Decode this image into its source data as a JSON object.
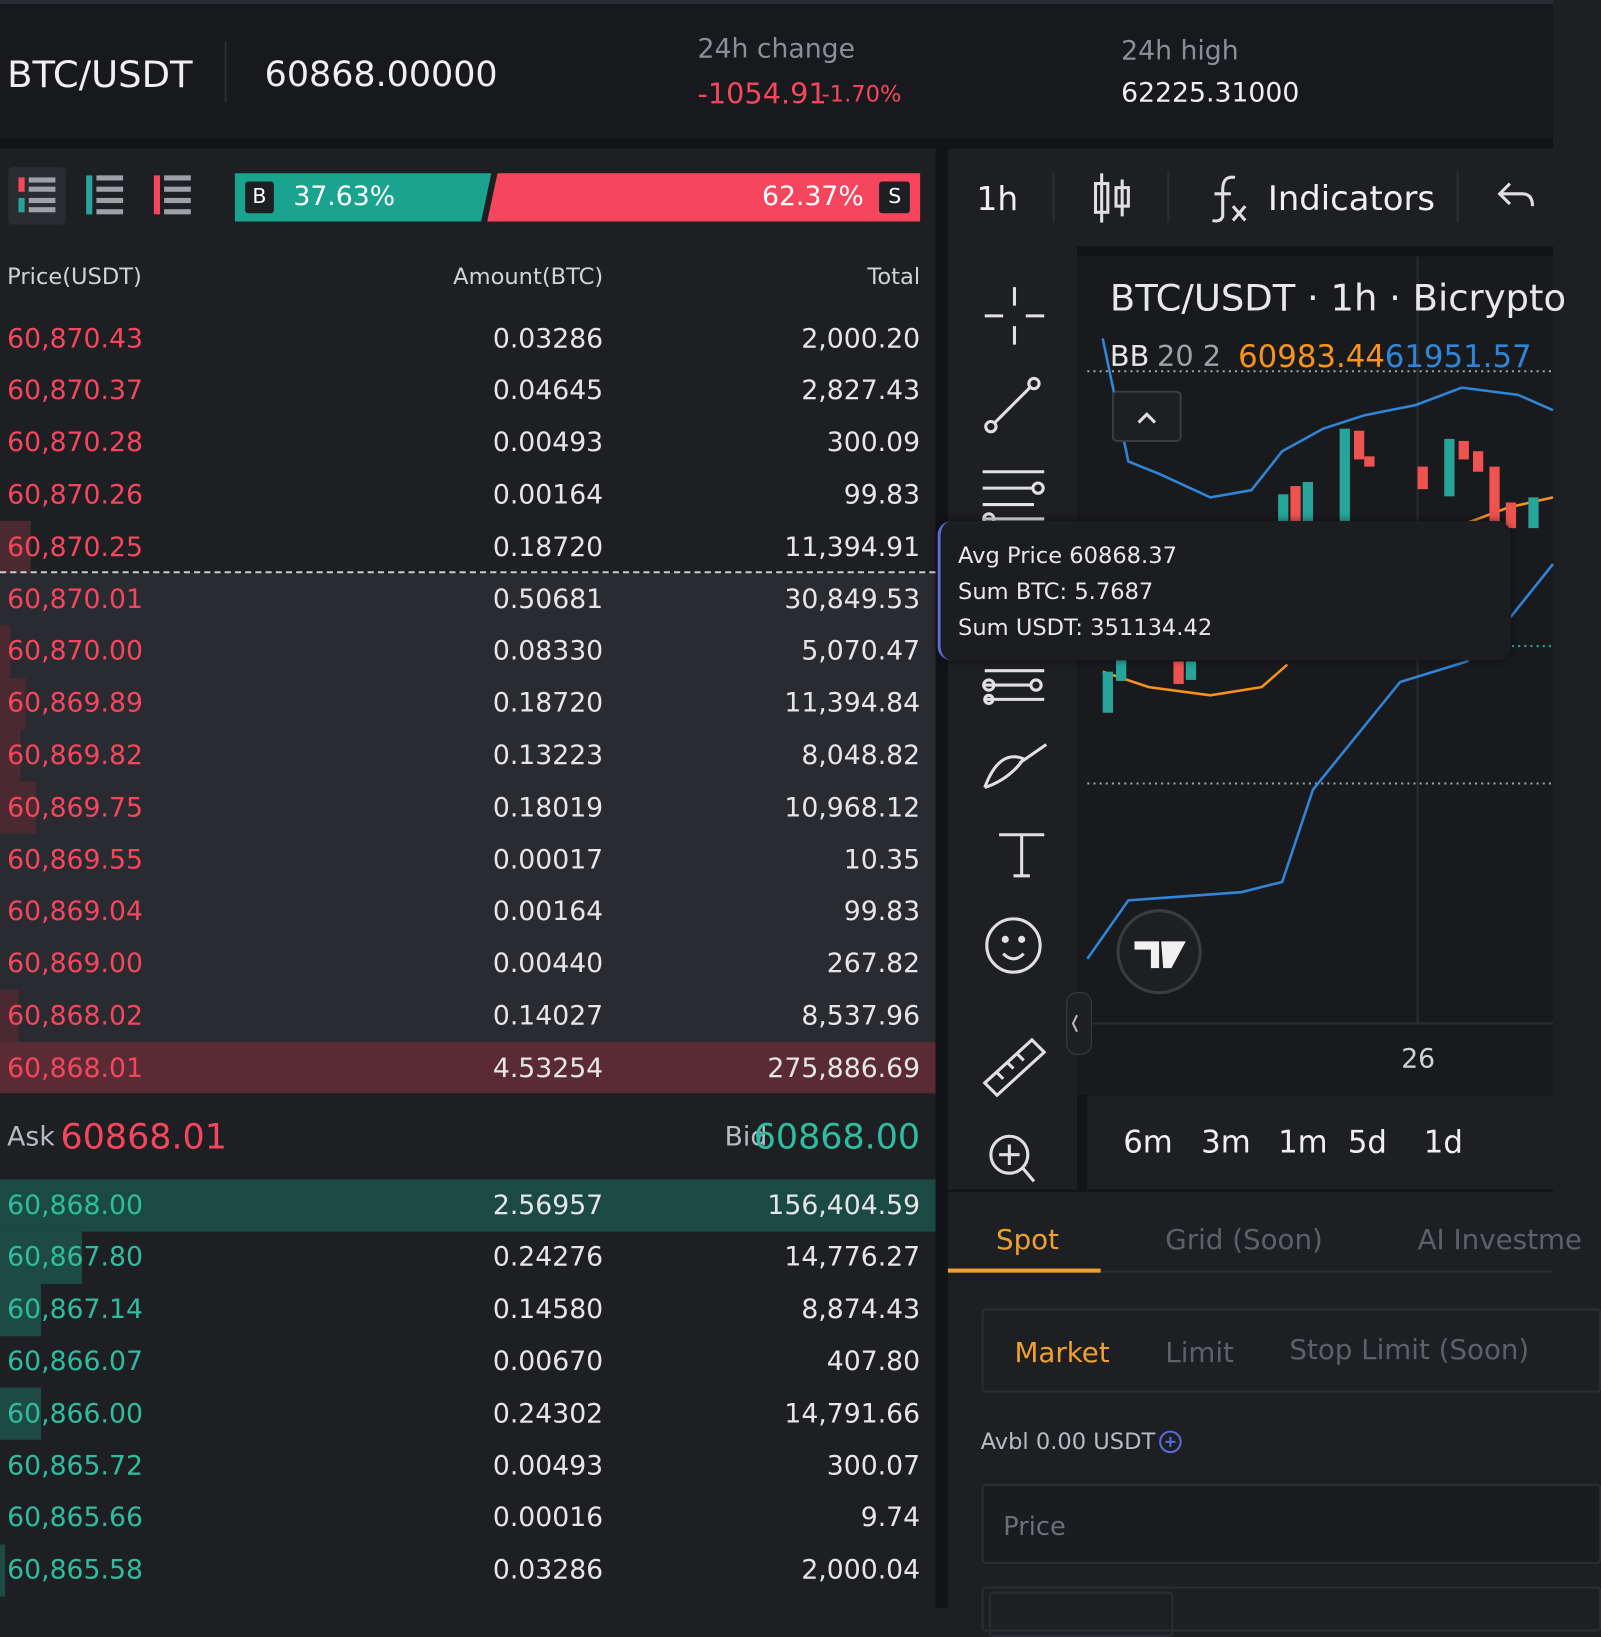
{
  "header": {
    "pair": "BTC/USDT",
    "price": "60868.00000",
    "change_label": "24h change",
    "change": "-1054.91",
    "change_pct": "-1.70%",
    "high_label": "24h high",
    "high": "62225.31000"
  },
  "order_book": {
    "ratio": {
      "buy_letter": "B",
      "buy_pct": "37.63%",
      "sell_pct": "62.37%",
      "sell_letter": "S"
    },
    "columns": [
      "Price(USDT)",
      "Amount(BTC)",
      "Total"
    ],
    "asks": [
      [
        "60,870.43",
        "0.03286",
        "2,000.20"
      ],
      [
        "60,870.37",
        "0.04645",
        "2,827.43"
      ],
      [
        "60,870.28",
        "0.00493",
        "300.09"
      ],
      [
        "60,870.26",
        "0.00164",
        "99.83"
      ],
      [
        "60,870.25",
        "0.18720",
        "11,394.91"
      ],
      [
        "60,870.01",
        "0.50681",
        "30,849.53"
      ],
      [
        "60,870.00",
        "0.08330",
        "5,070.47"
      ],
      [
        "60,869.89",
        "0.18720",
        "11,394.84"
      ],
      [
        "60,869.82",
        "0.13223",
        "8,048.82"
      ],
      [
        "60,869.75",
        "0.18019",
        "10,968.12"
      ],
      [
        "60,869.55",
        "0.00017",
        "10.35"
      ],
      [
        "60,869.04",
        "0.00164",
        "99.83"
      ],
      [
        "60,869.00",
        "0.00440",
        "267.82"
      ],
      [
        "60,868.02",
        "0.14027",
        "8,537.96"
      ],
      [
        "60,868.01",
        "4.53254",
        "275,886.69"
      ]
    ],
    "spread": {
      "ask_label": "Ask",
      "ask": "60868.01",
      "bid_label": "Bid",
      "bid": "60868.00"
    },
    "bids": [
      [
        "60,868.00",
        "2.56957",
        "156,404.59"
      ],
      [
        "60,867.80",
        "0.24276",
        "14,776.27"
      ],
      [
        "60,867.14",
        "0.14580",
        "8,874.43"
      ],
      [
        "60,866.07",
        "0.00670",
        "407.80"
      ],
      [
        "60,866.00",
        "0.24302",
        "14,791.66"
      ],
      [
        "60,865.72",
        "0.00493",
        "300.07"
      ],
      [
        "60,865.66",
        "0.00016",
        "9.74"
      ],
      [
        "60,865.58",
        "0.03286",
        "2,000.04"
      ]
    ]
  },
  "tooltip": {
    "lines": [
      "Avg Price 60868.37",
      "Sum BTC: 5.7687",
      "Sum USDT: 351134.42"
    ]
  },
  "chart": {
    "interval": "1h",
    "indicators": "Indicators",
    "title": "BTC/USDT · 1h · Bicrypto",
    "legend": {
      "name": "BB",
      "params": "20 2",
      "middle": "60983.44",
      "upper": "61951.57"
    },
    "x_label": "26",
    "ranges": [
      "6m",
      "3m",
      "1m",
      "5d",
      "1d"
    ]
  },
  "trade": {
    "tabs": [
      "Spot",
      "Grid (Soon)",
      "AI Investme"
    ],
    "order_types": [
      "Market",
      "Limit",
      "Stop Limit (Soon)"
    ],
    "available": "Avbl 0.00 USDT",
    "price_placeholder": "Price"
  }
}
